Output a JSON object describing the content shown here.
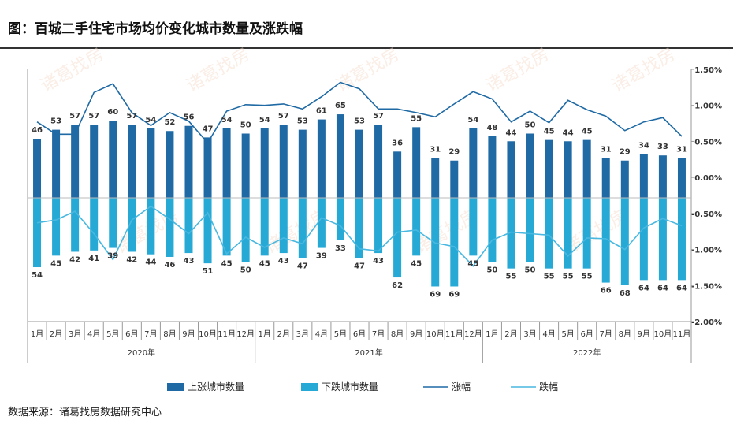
{
  "title": "图：百城二手住宅市场均价变化城市数量及涨跌幅",
  "source": "数据来源：诸葛找房数据研究中心",
  "watermark": "诸葛找房",
  "colors": {
    "up_bar": "#1f6aa5",
    "down_bar": "#27a9d6",
    "up_line": "#1f6aa5",
    "down_line": "#48b8e0",
    "axis": "#888888",
    "text": "#333333"
  },
  "chart_data": {
    "type": "bar+line",
    "categories": [
      "1月",
      "2月",
      "3月",
      "4月",
      "5月",
      "6月",
      "7月",
      "8月",
      "9月",
      "10月",
      "11月",
      "12月",
      "1月",
      "2月",
      "3月",
      "4月",
      "5月",
      "6月",
      "7月",
      "8月",
      "9月",
      "10月",
      "11月",
      "12月",
      "1月",
      "2月",
      "3月",
      "4月",
      "5月",
      "6月",
      "7月",
      "8月",
      "9月",
      "10月",
      "11月"
    ],
    "years": [
      {
        "label": "2020年",
        "count": 12
      },
      {
        "label": "2021年",
        "count": 12
      },
      {
        "label": "2022年",
        "count": 11
      }
    ],
    "series": [
      {
        "name": "上涨城市数量",
        "kind": "bar",
        "axis": "left",
        "values": [
          46,
          53,
          57,
          57,
          60,
          57,
          54,
          52,
          56,
          47,
          54,
          50,
          54,
          57,
          53,
          61,
          65,
          53,
          57,
          36,
          55,
          31,
          29,
          54,
          48,
          44,
          50,
          45,
          44,
          45,
          31,
          29,
          34,
          33,
          31
        ]
      },
      {
        "name": "下跌城市数量",
        "kind": "bar",
        "axis": "left",
        "values": [
          54,
          45,
          42,
          41,
          39,
          42,
          44,
          46,
          43,
          51,
          45,
          50,
          45,
          43,
          47,
          39,
          33,
          47,
          43,
          62,
          45,
          69,
          69,
          45,
          50,
          55,
          50,
          55,
          55,
          55,
          66,
          68,
          64,
          64,
          64
        ]
      },
      {
        "name": "涨幅",
        "kind": "line",
        "axis": "right",
        "values": [
          0.77,
          0.6,
          0.6,
          1.18,
          1.3,
          0.9,
          0.72,
          0.9,
          0.78,
          0.48,
          0.92,
          1.01,
          1.0,
          1.02,
          0.95,
          1.12,
          1.32,
          1.23,
          0.95,
          0.95,
          0.9,
          0.84,
          1.02,
          1.19,
          1.09,
          0.77,
          0.92,
          0.76,
          1.07,
          0.94,
          0.85,
          0.65,
          0.77,
          0.83,
          0.57
        ]
      },
      {
        "name": "跌幅",
        "kind": "line",
        "axis": "right",
        "values": [
          -0.63,
          -0.59,
          -0.47,
          -0.78,
          -1.14,
          -0.59,
          -0.4,
          -0.58,
          -0.78,
          -0.49,
          -1.06,
          -0.83,
          -0.97,
          -0.84,
          -0.92,
          -0.56,
          -0.67,
          -0.99,
          -1.02,
          -0.76,
          -0.73,
          -0.91,
          -0.96,
          -1.23,
          -0.87,
          -0.76,
          -0.78,
          -0.8,
          -1.09,
          -0.84,
          -0.85,
          -1.0,
          -0.7,
          -0.57,
          -0.67
        ]
      }
    ],
    "y_right": {
      "min": -2.0,
      "max": 1.5,
      "ticks": [
        "1.50%",
        "1.00%",
        "0.50%",
        "0.00%",
        "-0.50%",
        "-1.00%",
        "-1.50%",
        "-2.00%"
      ]
    },
    "grid": false,
    "legend_position": "bottom"
  }
}
